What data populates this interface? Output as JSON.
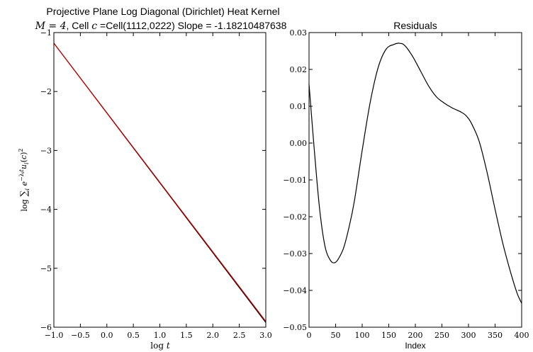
{
  "figure": {
    "title_line1": "Projective Plane Log Diagonal (Dirichlet) Heat Kernel",
    "title_line2_prefix": "M = 4",
    "title_line2_mid": ", Cell ",
    "title_line2_c": "c",
    "title_line2_rest": " =Cell(1112,0222) Slope = -1.18210487638"
  },
  "chart_data": [
    {
      "type": "line",
      "title": "",
      "xlabel": "log t",
      "ylabel": "log ∑ᵢ e^(−λᵢt) uᵢ(c)²",
      "xlim": [
        -1.0,
        3.0
      ],
      "ylim": [
        -6,
        -1
      ],
      "xticks": [
        "−1.0",
        "−0.5",
        "0.0",
        "0.5",
        "1.0",
        "1.5",
        "2.0",
        "2.5",
        "3.0"
      ],
      "yticks": [
        "−6",
        "−5",
        "−4",
        "−3",
        "−2",
        "−1"
      ],
      "grid": false,
      "series": [
        {
          "color": "#000000",
          "x": [
            -1.0,
            3.0
          ],
          "y": [
            -1.18,
            -5.92
          ]
        },
        {
          "color": "#cc0000",
          "x": [
            -1.0,
            3.0
          ],
          "y": [
            -1.18,
            -5.9
          ]
        }
      ]
    },
    {
      "type": "line",
      "title": "Residuals",
      "xlabel": "Index",
      "ylabel": "",
      "xlim": [
        0,
        400
      ],
      "ylim": [
        -0.05,
        0.03
      ],
      "xticks": [
        "0",
        "50",
        "100",
        "150",
        "200",
        "250",
        "300",
        "350",
        "400"
      ],
      "yticks": [
        "−0.05",
        "−0.04",
        "−0.03",
        "−0.02",
        "−0.01",
        "0.00",
        "0.01",
        "0.02",
        "0.03"
      ],
      "grid": false,
      "series": [
        {
          "color": "#000000",
          "x": [
            0,
            10,
            20,
            30,
            40,
            48,
            55,
            65,
            75,
            85,
            100,
            115,
            130,
            145,
            160,
            170,
            180,
            195,
            210,
            225,
            240,
            255,
            270,
            285,
            295,
            305,
            320,
            335,
            350,
            365,
            380,
            392,
            400
          ],
          "y": [
            0.016,
            -0.002,
            -0.018,
            -0.028,
            -0.0318,
            -0.0325,
            -0.0315,
            -0.0285,
            -0.023,
            -0.016,
            -0.002,
            0.011,
            0.0205,
            0.0255,
            0.0268,
            0.0271,
            0.0265,
            0.0235,
            0.0195,
            0.0155,
            0.0125,
            0.0108,
            0.0095,
            0.0085,
            0.0075,
            0.0055,
            0.0005,
            -0.008,
            -0.018,
            -0.0275,
            -0.0355,
            -0.041,
            -0.0435
          ]
        }
      ]
    }
  ]
}
